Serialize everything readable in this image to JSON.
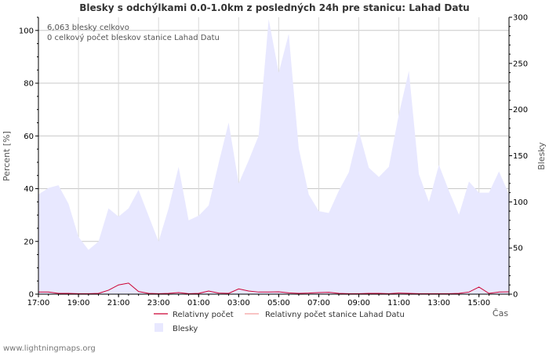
{
  "chart_data": {
    "type": "area",
    "title": "Blesky s odchýlkami 0.0-1.0km z posledných 24h pre stanicu: Lahad Datu",
    "ylabel_left": "Percent   [%]",
    "ylabel_right": "Blesky",
    "xlabel": "Čas",
    "y_left_ticks": [
      0,
      20,
      40,
      60,
      80,
      100
    ],
    "y_right_ticks": [
      0,
      50,
      100,
      150,
      200,
      250,
      300
    ],
    "ylim_left": [
      0,
      105
    ],
    "ylim_right": [
      0,
      300
    ],
    "x_tick_labels": [
      "17:00",
      "19:00",
      "21:00",
      "23:00",
      "01:00",
      "03:00",
      "05:00",
      "07:00",
      "09:00",
      "11:00",
      "13:00",
      "15:00"
    ],
    "x_tick_hours": [
      0,
      2,
      4,
      6,
      8,
      10,
      12,
      14,
      16,
      18,
      20,
      22
    ],
    "x_range_hours": [
      0,
      23.5
    ],
    "annotations": [
      "6,063 blesky celkovo",
      "0 celkový počet bleskov stanice Lahad Datu"
    ],
    "series": [
      {
        "name": "Blesky",
        "axis": "right",
        "color": "#e8e8ff",
        "x_hours": [
          0,
          0.5,
          1,
          1.5,
          2,
          2.5,
          3,
          3.5,
          4,
          4.5,
          5,
          5.5,
          6,
          6.5,
          7,
          7.5,
          8,
          8.5,
          9,
          9.5,
          10,
          10.5,
          11,
          11.5,
          12,
          12.5,
          13,
          13.5,
          14,
          14.5,
          15,
          15.5,
          16,
          16.5,
          17,
          17.5,
          18,
          18.5,
          19,
          19.5,
          20,
          20.5,
          21,
          21.5,
          22,
          22.5,
          23,
          23.5
        ],
        "values": [
          108,
          115,
          118,
          98,
          62,
          48,
          57,
          93,
          84,
          93,
          113,
          85,
          57,
          93,
          138,
          80,
          85,
          96,
          142,
          186,
          120,
          145,
          172,
          298,
          240,
          282,
          158,
          108,
          90,
          88,
          112,
          132,
          177,
          137,
          127,
          138,
          195,
          242,
          130,
          100,
          140,
          112,
          86,
          122,
          110,
          110,
          133,
          108
        ]
      },
      {
        "name": "Relativny počet",
        "axis": "left",
        "color": "#cc0033",
        "x_hours": [
          0,
          0.5,
          1,
          1.5,
          2,
          2.5,
          3,
          3.5,
          4,
          4.5,
          5,
          5.5,
          6,
          6.5,
          7,
          7.5,
          8,
          8.5,
          9,
          9.5,
          10,
          10.5,
          11,
          11.5,
          12,
          12.5,
          13,
          13.5,
          14,
          14.5,
          15,
          15.5,
          16,
          16.5,
          17,
          17.5,
          18,
          18.5,
          19,
          19.5,
          20,
          20.5,
          21,
          21.5,
          22,
          22.5,
          23,
          23.5
        ],
        "values": [
          0.8,
          0.8,
          0.3,
          0.3,
          0.2,
          0.2,
          0.3,
          1.5,
          3.5,
          4.2,
          1.0,
          0.3,
          0.2,
          0.3,
          0.6,
          0.2,
          0.3,
          1.2,
          0.4,
          0.3,
          2.0,
          1.2,
          0.8,
          0.8,
          0.9,
          0.5,
          0.3,
          0.4,
          0.6,
          0.7,
          0.3,
          0.2,
          0.2,
          0.3,
          0.3,
          0.2,
          0.4,
          0.3,
          0.2,
          0.2,
          0.2,
          0.2,
          0.3,
          0.8,
          2.7,
          0.3,
          0.8,
          0.9
        ]
      },
      {
        "name": "Relativny počet stanice Lahad Datu",
        "axis": "left",
        "color": "#f4a0a0",
        "x_hours": [
          0,
          23.5
        ],
        "values": [
          0,
          0
        ]
      }
    ],
    "legend": [
      {
        "label": "Relativny počet",
        "kind": "line",
        "color": "#cc0033"
      },
      {
        "label": "Relativny počet stanice Lahad Datu",
        "kind": "line",
        "color": "#f4a0a0"
      },
      {
        "label": "Blesky",
        "kind": "box",
        "color": "#e8e8ff"
      }
    ]
  },
  "footer": {
    "watermark": "www.lightningmaps.org"
  }
}
